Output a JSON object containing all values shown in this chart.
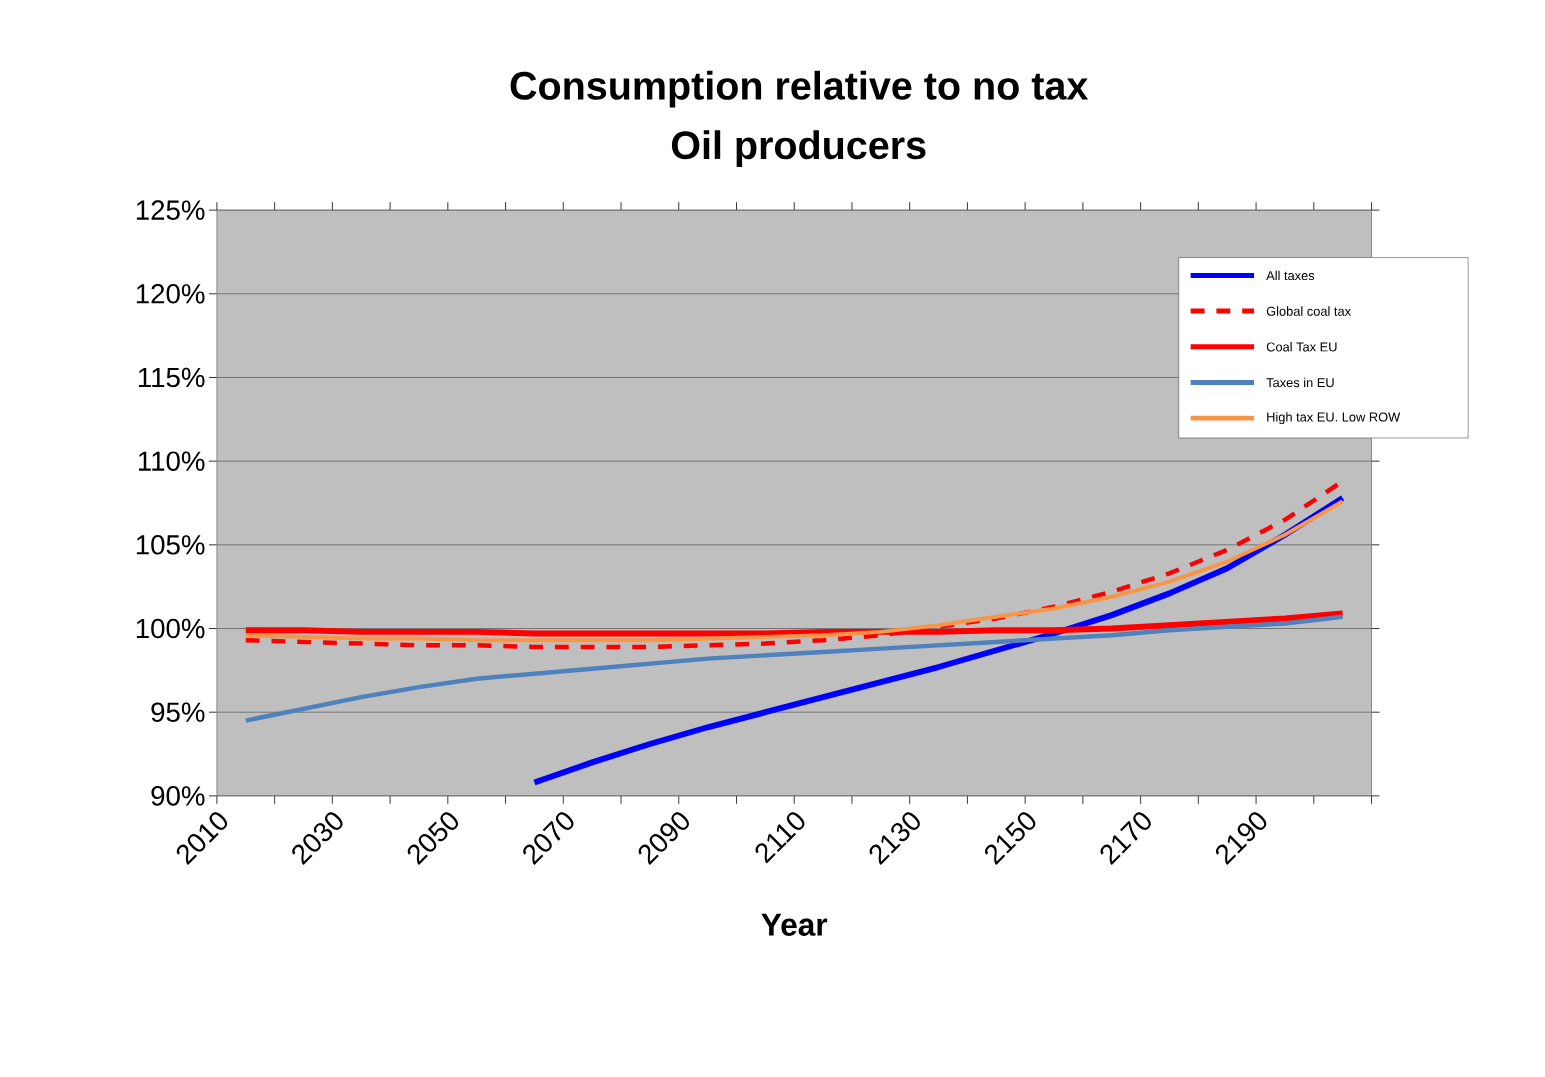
{
  "chart_data": {
    "type": "line",
    "title": "Consumption relative to no tax",
    "subtitle": "Oil producers",
    "xlabel": "Year",
    "x": [
      2015,
      2025,
      2035,
      2045,
      2055,
      2065,
      2075,
      2085,
      2095,
      2105,
      2115,
      2125,
      2135,
      2145,
      2155,
      2165,
      2175,
      2185,
      2195,
      2205
    ],
    "series": [
      {
        "name": "All taxes",
        "color": "#0000ff",
        "line_style": "solid",
        "values": [
          null,
          null,
          null,
          null,
          null,
          90.8,
          92.0,
          93.1,
          94.1,
          95.0,
          95.9,
          96.8,
          97.7,
          98.7,
          99.7,
          100.8,
          102.1,
          103.6,
          105.6,
          107.8
        ]
      },
      {
        "name": "Global coal tax",
        "color": "#ff0000",
        "line_style": "dashed",
        "values": [
          99.3,
          99.2,
          99.1,
          99.0,
          99.0,
          98.9,
          98.9,
          98.9,
          99.0,
          99.1,
          99.3,
          99.6,
          100.1,
          100.6,
          101.3,
          102.2,
          103.3,
          104.7,
          106.5,
          108.8
        ]
      },
      {
        "name": "Coal Tax EU",
        "color": "#ff0000",
        "line_style": "solid",
        "values": [
          99.9,
          99.9,
          99.8,
          99.8,
          99.8,
          99.7,
          99.7,
          99.7,
          99.7,
          99.7,
          99.8,
          99.8,
          99.8,
          99.9,
          99.9,
          100.0,
          100.2,
          100.4,
          100.6,
          100.9
        ]
      },
      {
        "name": "Taxes in EU",
        "color": "#4f81bd",
        "line_style": "solid",
        "values": [
          94.5,
          95.2,
          95.9,
          96.5,
          97.0,
          97.3,
          97.6,
          97.9,
          98.2,
          98.4,
          98.6,
          98.8,
          99.0,
          99.2,
          99.4,
          99.6,
          99.9,
          100.1,
          100.3,
          100.7
        ]
      },
      {
        "name": "High tax EU. Low ROW",
        "color": "#f79646",
        "line_style": "solid",
        "values": [
          99.6,
          99.5,
          99.4,
          99.4,
          99.3,
          99.3,
          99.3,
          99.3,
          99.4,
          99.5,
          99.6,
          99.8,
          100.2,
          100.7,
          101.2,
          101.9,
          102.8,
          104.0,
          105.6,
          107.6
        ]
      }
    ],
    "xlim": [
      2010,
      2210
    ],
    "xticks": [
      2010,
      {
        "value": 2020,
        "label": null
      },
      2030,
      {
        "value": 2040,
        "label": null
      },
      2050,
      {
        "value": 2060,
        "label": null
      },
      2070,
      {
        "value": 2080,
        "label": null
      },
      2090,
      {
        "value": 2100,
        "label": null
      },
      2110,
      {
        "value": 2120,
        "label": null
      },
      2130,
      {
        "value": 2140,
        "label": null
      },
      2150,
      {
        "value": 2160,
        "label": null
      },
      2170,
      {
        "value": 2180,
        "label": null
      },
      2190,
      {
        "value": 2200,
        "label": null
      },
      {
        "value": 2210,
        "label": null
      }
    ],
    "ylim": [
      90,
      125
    ],
    "yticks": [
      {
        "value": 90,
        "label": "90%"
      },
      {
        "value": 95,
        "label": "95%"
      },
      {
        "value": 100,
        "label": "100%"
      },
      {
        "value": 105,
        "label": "105%"
      },
      {
        "value": 110,
        "label": "110%"
      },
      {
        "value": 115,
        "label": "115%"
      },
      {
        "value": 120,
        "label": "120%"
      },
      {
        "value": 125,
        "label": "125%"
      }
    ],
    "grid": "y",
    "legend": "top right",
    "marker": "none"
  }
}
